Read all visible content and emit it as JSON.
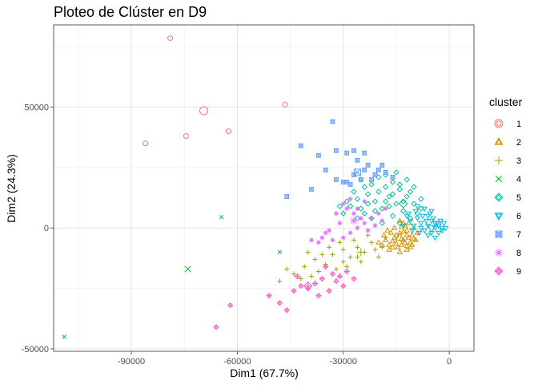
{
  "chart_data": {
    "type": "scatter",
    "title": "Ploteo de Clúster en D9",
    "xlabel": "Dim1 (67.7%)",
    "ylabel": "Dim2 (24.3%)",
    "xlim": [
      -112000,
      7000
    ],
    "ylim": [
      -51000,
      84000
    ],
    "x_ticks": [
      -90000,
      -60000,
      -30000,
      0
    ],
    "x_tick_labels": [
      "-90000",
      "-60000",
      "-30000",
      "0"
    ],
    "y_ticks": [
      -50000,
      0,
      50000
    ],
    "y_tick_labels": [
      "-50000",
      "0",
      "50000"
    ],
    "grid": true,
    "legend": {
      "title": "cluster",
      "position": "right",
      "entries": [
        "1",
        "2",
        "3",
        "4",
        "5",
        "6",
        "7",
        "8",
        "9"
      ]
    },
    "series": [
      {
        "name": "1",
        "color": "#F8766D",
        "shape": "circle",
        "points": [
          [
            -79000,
            78500
          ],
          [
            -86000,
            35000
          ],
          [
            -74500,
            38000
          ],
          [
            -62500,
            40000
          ],
          [
            -46500,
            51000
          ]
        ],
        "centroid": [
          -69500,
          48500
        ]
      },
      {
        "name": "2",
        "color": "#D39200",
        "shape": "triangle",
        "points": [
          [
            -14000,
            -2000
          ],
          [
            -13000,
            -5000
          ],
          [
            -12000,
            -1000
          ],
          [
            -11000,
            -6000
          ],
          [
            -15000,
            -3000
          ],
          [
            -10500,
            -3000
          ],
          [
            -13500,
            -7000
          ],
          [
            -16000,
            -5500
          ],
          [
            -12500,
            1000
          ],
          [
            -11500,
            -4000
          ],
          [
            -14500,
            -8000
          ],
          [
            -17000,
            -7000
          ],
          [
            -9500,
            -5000
          ],
          [
            -12000,
            -9000
          ],
          [
            -15500,
            0
          ],
          [
            -13000,
            2000
          ],
          [
            -10000,
            0
          ],
          [
            -16500,
            -2000
          ],
          [
            -18000,
            -5000
          ],
          [
            -11000,
            -8000
          ],
          [
            -14000,
            3000
          ],
          [
            -12000,
            -3000
          ],
          [
            -13500,
            -4500
          ],
          [
            -15000,
            -6500
          ],
          [
            -10500,
            -7000
          ],
          [
            -17000,
            -9000
          ],
          [
            -19000,
            -7000
          ],
          [
            -9000,
            -2000
          ],
          [
            -12500,
            -6000
          ],
          [
            -14000,
            -10000
          ],
          [
            -16000,
            -8000
          ],
          [
            -11500,
            2000
          ],
          [
            -13000,
            -1500
          ],
          [
            -15500,
            -4000
          ],
          [
            -18500,
            -3000
          ],
          [
            -20000,
            -6000
          ],
          [
            -17500,
            -1000
          ],
          [
            -10000,
            -4500
          ],
          [
            -12000,
            -7500
          ],
          [
            -13500,
            500
          ]
        ],
        "centroid": [
          -14000,
          -4000
        ]
      },
      {
        "name": "3",
        "color": "#93AA00",
        "shape": "plus",
        "points": [
          [
            -33000,
            -11000
          ],
          [
            -30000,
            -9000
          ],
          [
            -28000,
            -12000
          ],
          [
            -35000,
            -15000
          ],
          [
            -38000,
            -13000
          ],
          [
            -41000,
            -16000
          ],
          [
            -44000,
            -19000
          ],
          [
            -32000,
            -17000
          ],
          [
            -26000,
            -8000
          ],
          [
            -24000,
            -10000
          ],
          [
            -22000,
            -6000
          ],
          [
            -20000,
            -12000
          ],
          [
            -25000,
            -14000
          ],
          [
            -29000,
            -16000
          ],
          [
            -36000,
            -11000
          ],
          [
            -40000,
            -10000
          ],
          [
            -46000,
            -17000
          ],
          [
            -48000,
            -22000
          ],
          [
            -42000,
            -21000
          ],
          [
            -27000,
            -5000
          ],
          [
            -23000,
            -3000
          ],
          [
            -21000,
            -9000
          ],
          [
            -31000,
            -6000
          ],
          [
            -34000,
            -8000
          ],
          [
            -37000,
            -18000
          ],
          [
            -39000,
            -20000
          ],
          [
            -30000,
            -14000
          ],
          [
            -26000,
            -12000
          ],
          [
            -19000,
            -8000
          ],
          [
            -18000,
            -4000
          ]
        ],
        "centroid": [
          -25000,
          -10000
        ]
      },
      {
        "name": "4",
        "color": "#00BA38",
        "shape": "x",
        "points": [
          [
            -109000,
            -45000
          ],
          [
            -64500,
            4500
          ],
          [
            -48000,
            -10000
          ]
        ],
        "centroid": [
          -74000,
          -17000
        ]
      },
      {
        "name": "5",
        "color": "#00C19F",
        "shape": "diamond",
        "points": [
          [
            -25000,
            20000
          ],
          [
            -22000,
            18000
          ],
          [
            -20000,
            15000
          ],
          [
            -18000,
            22000
          ],
          [
            -16000,
            19000
          ],
          [
            -14000,
            16000
          ],
          [
            -12000,
            13000
          ],
          [
            -10000,
            10000
          ],
          [
            -8000,
            8000
          ],
          [
            -15000,
            10000
          ],
          [
            -17000,
            13000
          ],
          [
            -19000,
            8000
          ],
          [
            -21000,
            11000
          ],
          [
            -23000,
            14000
          ],
          [
            -26000,
            12000
          ],
          [
            -28000,
            9000
          ],
          [
            -30000,
            6000
          ],
          [
            -24000,
            6000
          ],
          [
            -22000,
            4000
          ],
          [
            -19000,
            2000
          ],
          [
            -16000,
            5000
          ],
          [
            -13000,
            7000
          ],
          [
            -11000,
            4000
          ],
          [
            -9000,
            6000
          ],
          [
            -14000,
            2000
          ],
          [
            -12000,
            20000
          ],
          [
            -15000,
            23000
          ],
          [
            -18000,
            17000
          ],
          [
            -20000,
            21000
          ],
          [
            -24000,
            17000
          ],
          [
            -27000,
            15000
          ],
          [
            -29000,
            11000
          ],
          [
            -31000,
            9000
          ],
          [
            -26000,
            4000
          ],
          [
            -13000,
            11000
          ],
          [
            -11000,
            15000
          ],
          [
            -8000,
            12000
          ],
          [
            -17000,
            9000
          ],
          [
            -21000,
            7000
          ],
          [
            -23000,
            10000
          ],
          [
            -25000,
            8000
          ],
          [
            -14000,
            18000
          ],
          [
            -10000,
            17000
          ],
          [
            -16000,
            14000
          ],
          [
            -18000,
            11000
          ]
        ],
        "centroid": [
          -13000,
          10000
        ]
      },
      {
        "name": "6",
        "color": "#00B9E3",
        "shape": "triangle-down",
        "points": [
          [
            -8000,
            2000
          ],
          [
            -7000,
            -1000
          ],
          [
            -6000,
            1000
          ],
          [
            -5000,
            -2000
          ],
          [
            -4000,
            0
          ],
          [
            -3000,
            1000
          ],
          [
            -2000,
            -1000
          ],
          [
            -1000,
            0
          ],
          [
            -9000,
            4000
          ],
          [
            -10000,
            1000
          ],
          [
            -11000,
            3000
          ],
          [
            -7500,
            5000
          ],
          [
            -6500,
            3000
          ],
          [
            -5500,
            6000
          ],
          [
            -4500,
            4000
          ],
          [
            -3500,
            2000
          ],
          [
            -2500,
            3000
          ],
          [
            -8500,
            -2000
          ],
          [
            -6000,
            -3000
          ],
          [
            -4000,
            -4000
          ],
          [
            -3000,
            -2000
          ],
          [
            -9500,
            7000
          ],
          [
            -7000,
            8000
          ],
          [
            -5000,
            7000
          ],
          [
            -1500,
            2000
          ],
          [
            -12000,
            5000
          ],
          [
            -10500,
            -1000
          ],
          [
            -8000,
            0
          ],
          [
            -6000,
            5000
          ],
          [
            -4000,
            2000
          ],
          [
            -2000,
            0
          ],
          [
            -9000,
            9000
          ],
          [
            -11500,
            6000
          ],
          [
            -13000,
            1000
          ],
          [
            -5000,
            3000
          ]
        ],
        "centroid": [
          -5000,
          0
        ]
      },
      {
        "name": "7",
        "color": "#619CFF",
        "shape": "square",
        "points": [
          [
            -33000,
            44000
          ],
          [
            -42000,
            34000
          ],
          [
            -37000,
            30000
          ],
          [
            -32000,
            32000
          ],
          [
            -29000,
            31000
          ],
          [
            -27000,
            32000
          ],
          [
            -24000,
            31000
          ],
          [
            -26000,
            28000
          ],
          [
            -23000,
            26000
          ],
          [
            -20000,
            24000
          ],
          [
            -18000,
            23000
          ],
          [
            -21000,
            22000
          ],
          [
            -24000,
            24000
          ],
          [
            -27000,
            22000
          ],
          [
            -29000,
            19000
          ],
          [
            -30000,
            19000
          ],
          [
            -32000,
            20000
          ],
          [
            -35000,
            24000
          ],
          [
            -39000,
            16000
          ],
          [
            -46000,
            13000
          ],
          [
            -22000,
            20000
          ],
          [
            -25000,
            20000
          ],
          [
            -28000,
            18000
          ],
          [
            -16000,
            21000
          ],
          [
            -19000,
            26000
          ]
        ],
        "centroid": [
          -26000,
          23000
        ]
      },
      {
        "name": "8",
        "color": "#DB72FB",
        "shape": "asterisk",
        "points": [
          [
            -36000,
            -4000
          ],
          [
            -33000,
            -5000
          ],
          [
            -30000,
            -4000
          ],
          [
            -28000,
            -2000
          ],
          [
            -26000,
            0
          ],
          [
            -24000,
            2000
          ],
          [
            -22000,
            4000
          ],
          [
            -20000,
            6000
          ],
          [
            -25000,
            4000
          ],
          [
            -27000,
            6000
          ],
          [
            -29000,
            8000
          ],
          [
            -31000,
            2000
          ],
          [
            -23000,
            -1000
          ],
          [
            -21000,
            1000
          ],
          [
            -19000,
            3000
          ],
          [
            -34000,
            -1000
          ],
          [
            -37000,
            -6000
          ],
          [
            -39000,
            -5000
          ],
          [
            -26000,
            8000
          ],
          [
            -24000,
            11000
          ],
          [
            -28000,
            12000
          ],
          [
            -32000,
            6000
          ],
          [
            -18000,
            8000
          ],
          [
            -35000,
            -2000
          ],
          [
            -30000,
            10000
          ]
        ],
        "centroid": [
          -27000,
          3000
        ]
      },
      {
        "name": "9",
        "color": "#FF61C3",
        "shape": "diamond-plus",
        "points": [
          [
            -66000,
            -41000
          ],
          [
            -62000,
            -32000
          ],
          [
            -51000,
            -28000
          ],
          [
            -48000,
            -31000
          ],
          [
            -46000,
            -34000
          ],
          [
            -44000,
            -26000
          ],
          [
            -42000,
            -24000
          ],
          [
            -40000,
            -25000
          ],
          [
            -38000,
            -23000
          ],
          [
            -36000,
            -21000
          ],
          [
            -35000,
            -16000
          ],
          [
            -33000,
            -19000
          ],
          [
            -32000,
            -22000
          ],
          [
            -31000,
            -20000
          ],
          [
            -30000,
            -24000
          ],
          [
            -29000,
            -18000
          ],
          [
            -27000,
            -21000
          ],
          [
            -34000,
            -26000
          ],
          [
            -37000,
            -28000
          ],
          [
            -43000,
            -20000
          ]
        ],
        "centroid": [
          -40000,
          -24000
        ]
      }
    ]
  }
}
